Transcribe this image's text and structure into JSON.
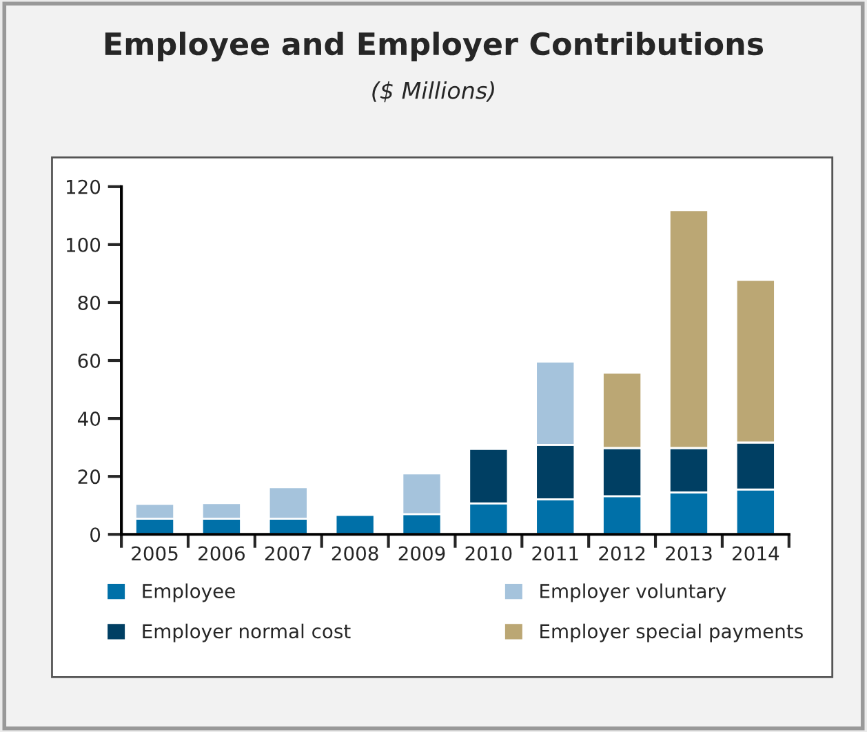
{
  "chart_data": {
    "type": "bar",
    "title": "Employee and Employer Contributions",
    "subtitle": "($ Millions)",
    "categories": [
      "2005",
      "2006",
      "2007",
      "2008",
      "2009",
      "2010",
      "2011",
      "2012",
      "2013",
      "2014"
    ],
    "stacked": true,
    "series": [
      {
        "name": "Employee",
        "color": "#0070a8",
        "values": [
          5.4,
          5.4,
          5.4,
          6.7,
          7.0,
          10.7,
          12.1,
          13.2,
          14.5,
          15.5
        ]
      },
      {
        "name": "Employer normal cost",
        "color": "#003f63",
        "values": [
          null,
          null,
          null,
          null,
          null,
          18.8,
          18.8,
          16.6,
          15.3,
          16.2
        ]
      },
      {
        "name": "Employer voluntary",
        "color": "#a5c3dc",
        "values": [
          5.1,
          5.4,
          10.9,
          null,
          14.0,
          null,
          28.7,
          null,
          null,
          null
        ]
      },
      {
        "name": "Employer special payments",
        "color": "#bba774",
        "values": [
          null,
          null,
          null,
          null,
          null,
          null,
          null,
          26.0,
          82.1,
          56.1
        ]
      }
    ],
    "ylim": [
      0,
      120
    ],
    "yticks": [
      0,
      20,
      40,
      60,
      80,
      100,
      120
    ],
    "grid": false,
    "legend": "bottom"
  }
}
